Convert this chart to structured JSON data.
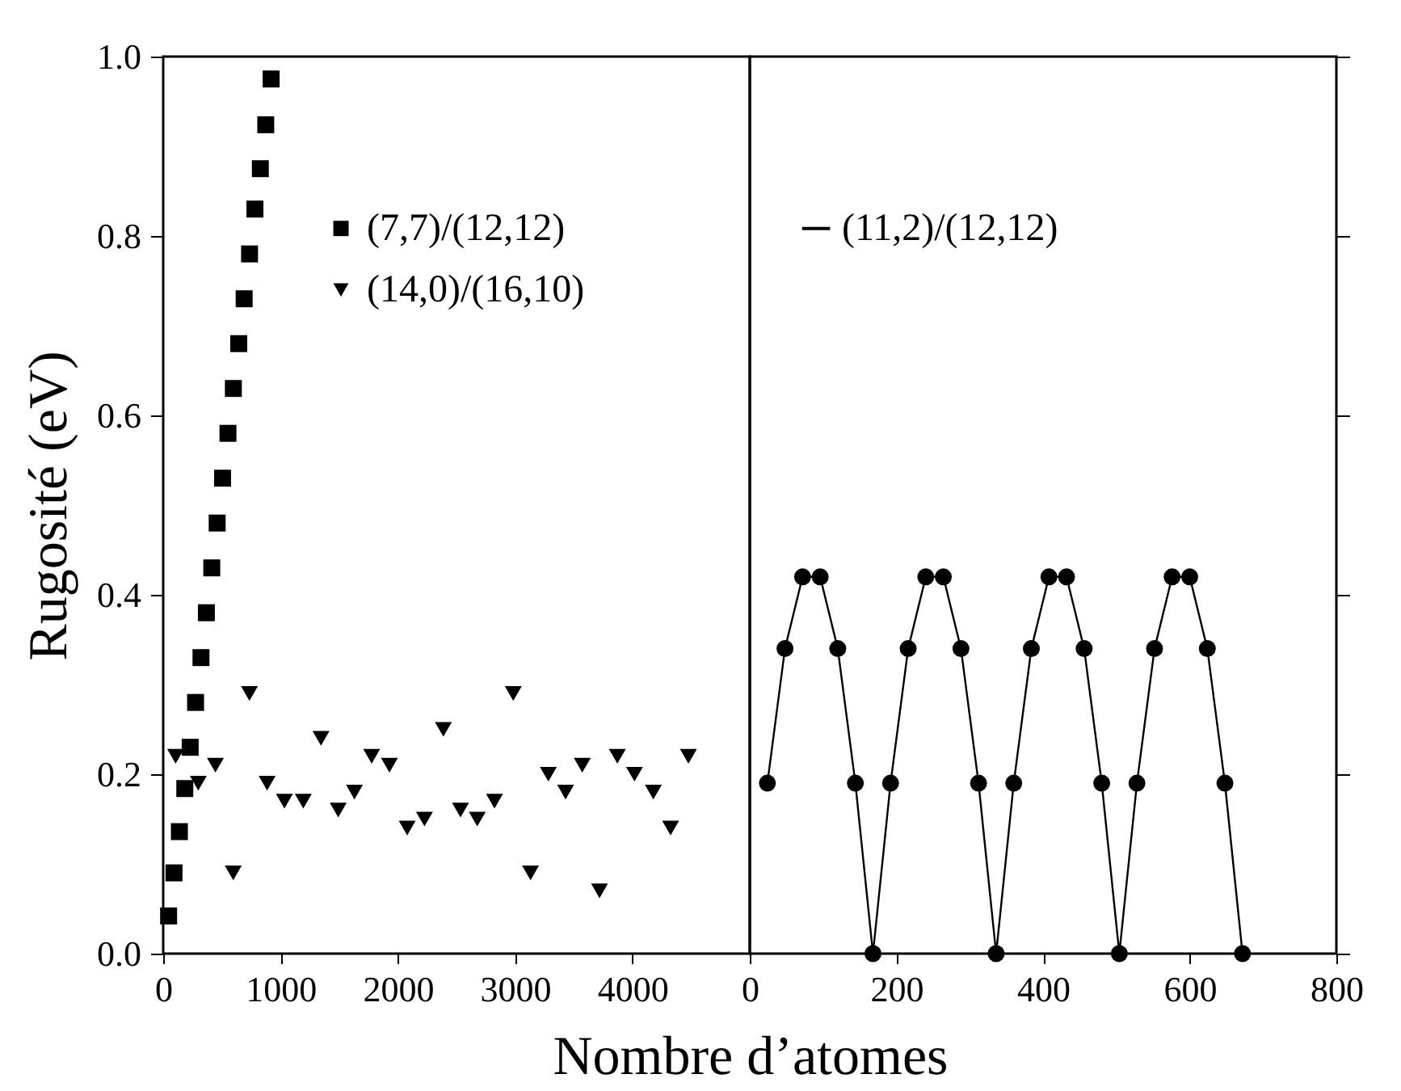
{
  "chart_data": [
    {
      "type": "scatter",
      "xlabel": "Nombre d’atomes",
      "ylabel": "Rugosité (eV)",
      "xlim": [
        0,
        5000
      ],
      "xticks": [
        0,
        1000,
        2000,
        3000,
        4000
      ],
      "ylim": [
        0,
        1.0
      ],
      "yticks": [
        {
          "value": 0,
          "label": "0.0"
        },
        0.2,
        0.4,
        0.6,
        0.8,
        {
          "value": 1,
          "label": "1.0"
        }
      ],
      "legend": "top right",
      "grid": false,
      "series": [
        {
          "name": "(7,7)/(12,12)",
          "color": "#000000",
          "marker": "square",
          "x": [
            46,
            92,
            138,
            184,
            230,
            276,
            322,
            368,
            414,
            460,
            506,
            552,
            598,
            644,
            690,
            736,
            782,
            828,
            874,
            920
          ],
          "values": [
            0.042,
            0.09,
            0.136,
            0.184,
            0.23,
            0.28,
            0.33,
            0.38,
            0.43,
            0.48,
            0.53,
            0.58,
            0.63,
            0.68,
            0.73,
            0.78,
            0.83,
            0.875,
            0.924,
            0.975
          ]
        },
        {
          "name": "(14,0)/(16,10)",
          "color": "#000000",
          "marker": "triangle",
          "x": [
            106,
            299,
            445,
            597,
            735,
            886,
            1033,
            1194,
            1345,
            1492,
            1630,
            1777,
            1928,
            2080,
            2227,
            2388,
            2534,
            2677,
            2824,
            2984,
            3131,
            3283,
            3430,
            3572,
            3719,
            3871,
            4017,
            4178,
            4325,
            4477
          ],
          "values": [
            0.22,
            0.19,
            0.21,
            0.09,
            0.29,
            0.19,
            0.17,
            0.17,
            0.24,
            0.16,
            0.18,
            0.22,
            0.21,
            0.14,
            0.15,
            0.25,
            0.16,
            0.15,
            0.17,
            0.29,
            0.09,
            0.2,
            0.18,
            0.21,
            0.07,
            0.22,
            0.2,
            0.18,
            0.14,
            0.22
          ]
        }
      ]
    },
    {
      "type": "line",
      "xlim": [
        0,
        800
      ],
      "xticks": [
        0,
        200,
        400,
        600,
        800
      ],
      "ylim": [
        0,
        1.0
      ],
      "yticks": [
        0,
        0.2,
        0.4,
        0.6,
        0.8,
        1
      ],
      "tick_labels": "x",
      "legend": "top",
      "grid": false,
      "marker": "circle",
      "line_style": "solid",
      "series": [
        {
          "name": "(11,2)/(12,12)",
          "color": "#000000",
          "x": [
            24,
            48,
            72,
            96,
            120,
            144,
            168,
            192,
            216,
            240,
            264,
            288,
            312,
            336,
            360,
            384,
            408,
            432,
            456,
            480,
            504,
            528,
            552,
            576,
            600,
            624,
            648,
            672
          ],
          "values": [
            0.19,
            0.34,
            0.42,
            0.42,
            0.34,
            0.19,
            0.0,
            0.19,
            0.34,
            0.42,
            0.42,
            0.34,
            0.19,
            0.0,
            0.19,
            0.34,
            0.42,
            0.42,
            0.34,
            0.19,
            0.0,
            0.19,
            0.34,
            0.42,
            0.42,
            0.34,
            0.19,
            0.0
          ]
        }
      ]
    }
  ]
}
